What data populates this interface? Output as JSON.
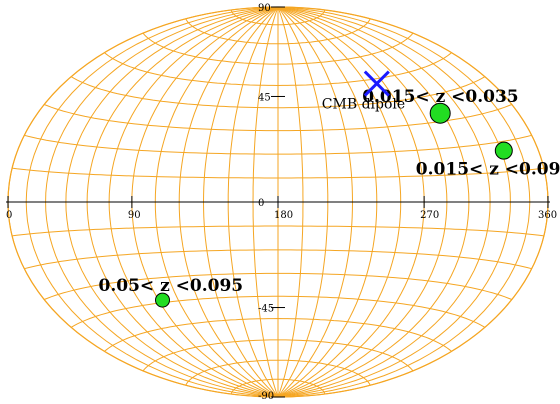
{
  "chart_data": {
    "type": "scatter",
    "projection": "aitoff-hammer",
    "xlim": [
      0,
      360
    ],
    "ylim": [
      -90,
      90
    ],
    "grid": true,
    "grid_color": "#f5a623",
    "x_ticks": [
      "0",
      "90",
      "180",
      "270",
      "360"
    ],
    "y_ticks": [
      "90",
      "45",
      "0",
      "-45",
      "-90"
    ],
    "marker_color": "#22dd22",
    "dipole_color": "#1a1aff",
    "points": [
      {
        "x": 298,
        "y": 33,
        "label": "0.015< z <0.035"
      },
      {
        "x": 332,
        "y": 17,
        "label": "0.015< z <0.095"
      },
      {
        "x": 93,
        "y": -39,
        "label": "0.05< z <0.095"
      }
    ],
    "dipole": {
      "x": 264,
      "y": 48,
      "label": "CMB dipole"
    }
  }
}
